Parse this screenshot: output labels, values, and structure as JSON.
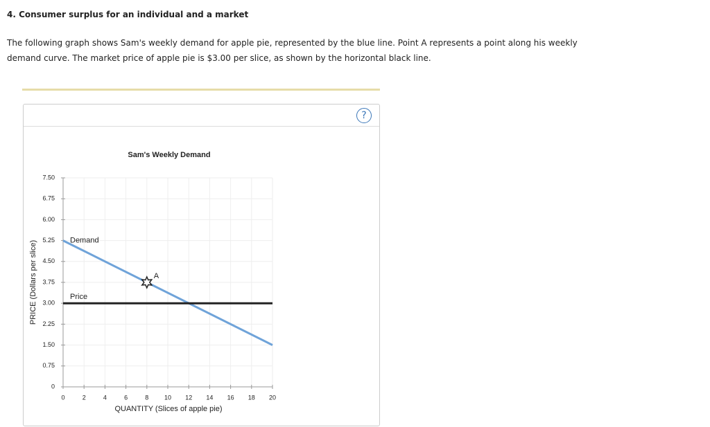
{
  "header": {
    "title": "4. Consumer surplus for an individual and a market",
    "paragraph": "The following graph shows Sam's weekly demand for apple pie, represented by the blue line. Point A represents a point along his weekly demand curve. The market price of apple pie is $3.00 per slice, as shown by the horizontal black line.",
    "help": "?"
  },
  "chart_data": {
    "type": "line",
    "title": "Sam's Weekly Demand",
    "x_label": "QUANTITY (Slices of apple pie)",
    "y_label": "PRICE (Dollars per slice)",
    "xlim": [
      0,
      20
    ],
    "ylim": [
      0,
      7.5
    ],
    "xticks": [
      0,
      2,
      4,
      6,
      8,
      10,
      12,
      14,
      16,
      18,
      20
    ],
    "yticks": [
      0,
      0.75,
      {
        "value": 1.5,
        "label": "1.50"
      },
      2.25,
      {
        "value": 3,
        "label": "3.00"
      },
      3.75,
      {
        "value": 4.5,
        "label": "4.50"
      },
      5.25,
      {
        "value": 6,
        "label": "6.00"
      },
      6.75,
      {
        "value": 7.5,
        "label": "7.50"
      }
    ],
    "grid": true,
    "series": [
      {
        "name": "Demand",
        "color": "#6fa3d9",
        "x": [
          0,
          20
        ],
        "values": [
          5.25,
          1.5
        ]
      },
      {
        "name": "Price",
        "color": "#222222",
        "x": [
          0,
          20
        ],
        "values": [
          3,
          3
        ]
      }
    ],
    "points": [
      {
        "label": "A",
        "x": 8,
        "y": 3.75
      }
    ]
  }
}
